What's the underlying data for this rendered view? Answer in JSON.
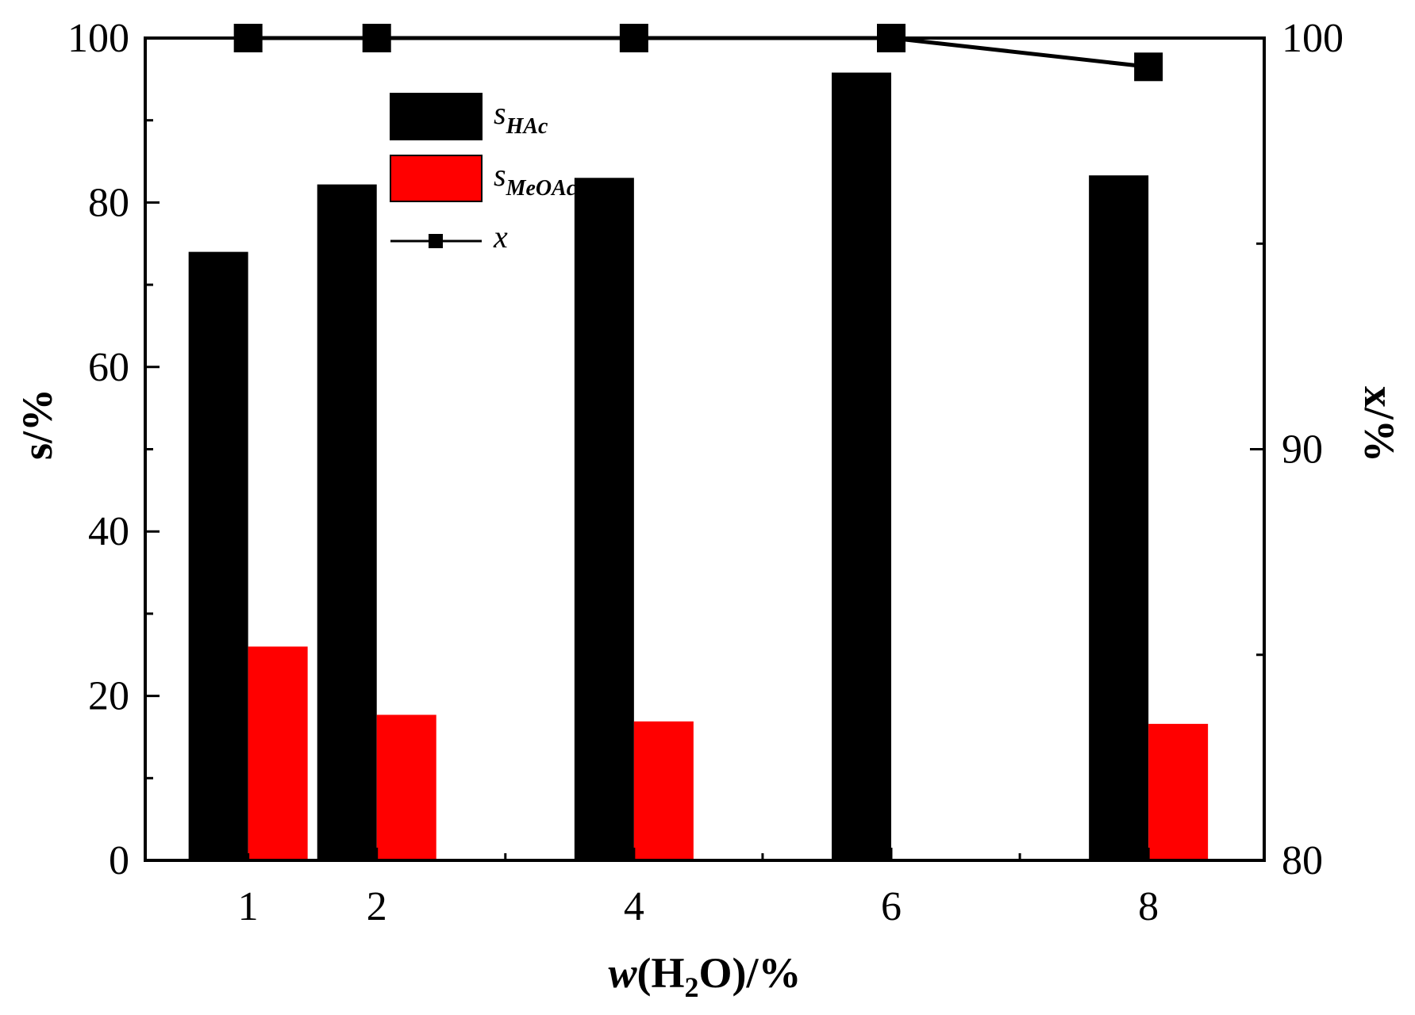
{
  "chart_data": {
    "type": "bar",
    "x_categories": [
      "1",
      "2",
      "4",
      "6",
      "8"
    ],
    "x": [
      1,
      2,
      4,
      6,
      8
    ],
    "xlim": [
      0.2,
      8.9
    ],
    "xlabel": {
      "prefix": "w",
      "open": "(H",
      "sub": "2",
      "close": "O)/%"
    },
    "ylabel_left": "s/%",
    "ylabel_right": "x/%",
    "ylim_left": [
      0,
      100
    ],
    "ylim_right": [
      80,
      100
    ],
    "left_ticks": [
      "0",
      "20",
      "40",
      "60",
      "80",
      "100"
    ],
    "right_ticks": [
      "80",
      "90",
      "100"
    ],
    "series": [
      {
        "key": "s_hac",
        "name": "s",
        "sub": "HAc",
        "axis": "left",
        "type": "bar",
        "color": "#000000",
        "values": [
          74,
          82.2,
          83,
          95.8,
          83.3
        ]
      },
      {
        "key": "s_meoac",
        "name": "s",
        "sub": "MeOAc",
        "axis": "left",
        "type": "bar",
        "color": "#ff0000",
        "values": [
          26,
          17.7,
          16.9,
          0,
          16.6
        ]
      },
      {
        "key": "x",
        "name": "x",
        "sub": "",
        "axis": "right",
        "type": "line",
        "color": "#000000",
        "values": [
          100,
          100,
          100,
          100,
          99.3
        ]
      }
    ],
    "legend_position": "top-left",
    "grid": false
  }
}
